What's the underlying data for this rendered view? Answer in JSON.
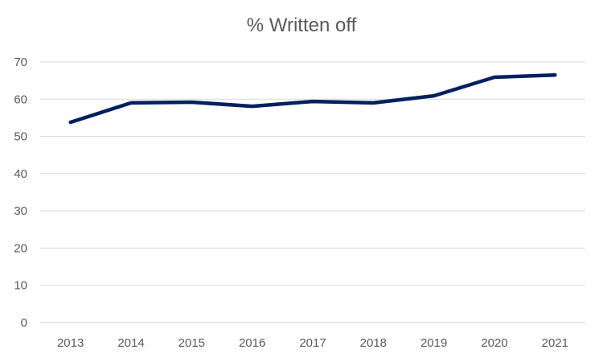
{
  "chart_data": {
    "type": "line",
    "title": "% Written off",
    "xlabel": "",
    "ylabel": "",
    "categories": [
      "2013",
      "2014",
      "2015",
      "2016",
      "2017",
      "2018",
      "2019",
      "2020",
      "2021"
    ],
    "series": [
      {
        "values": [
          53.8,
          59.0,
          59.2,
          58.1,
          59.4,
          59.0,
          60.9,
          65.9,
          66.5
        ],
        "color": "#002060"
      }
    ],
    "ylim": [
      0,
      70
    ],
    "yticks": [
      0,
      10,
      20,
      30,
      40,
      50,
      60,
      70
    ],
    "grid": true,
    "legend": "none",
    "colors": {
      "grid": "#d9d9d9",
      "text": "#595959"
    }
  }
}
